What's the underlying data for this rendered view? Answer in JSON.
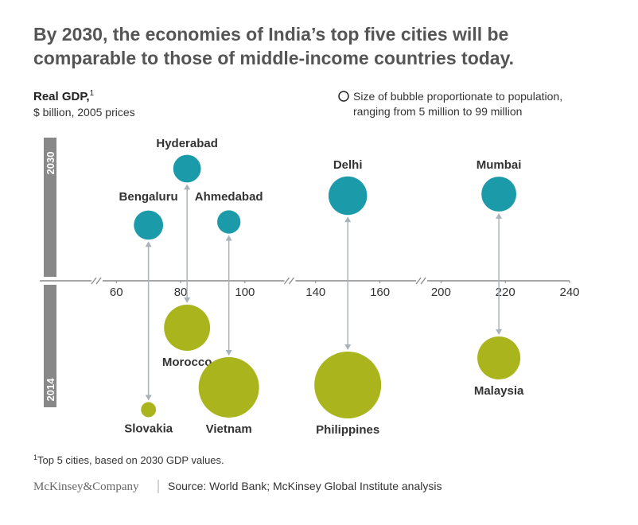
{
  "title": "By 2030, the economies of India’s top five cities will be comparable to those of middle-income countries today.",
  "chart_data": {
    "type": "bubble",
    "y_label": "Real GDP,",
    "y_label_note": "1",
    "y_unit": "$ billion, 2005 prices",
    "size_note": "Size of bubble proportionate to population, ranging from 5 million to 99 million",
    "x_segments": [
      [
        54,
        114
      ],
      [
        132,
        173
      ],
      [
        194,
        240
      ]
    ],
    "xticks": [
      60,
      80,
      100,
      140,
      160,
      200,
      220,
      240
    ],
    "top_label": "2030",
    "bottom_label": "2014",
    "series": [
      {
        "color": "#1b9aaa",
        "labels": [
          "Bengaluru",
          "Hyderabad",
          "Ahmedabad",
          "Delhi",
          "Mumbai"
        ],
        "values": [
          70,
          82,
          95,
          150,
          218
        ],
        "sizes": [
          19,
          17,
          12,
          33,
          27
        ]
      },
      {
        "color": "#aab51e",
        "labels": [
          "Slovakia",
          "Morocco",
          "Vietnam",
          "Philippines",
          "Malaysia"
        ],
        "values": [
          70,
          82,
          95,
          150,
          218
        ],
        "sizes": [
          5,
          47,
          81,
          99,
          41
        ]
      }
    ]
  },
  "footnote_mark": "1",
  "footnote": "Top 5 cities, based on 2030 GDP values.",
  "brand": "McKinsey&Company",
  "source": "Source: World Bank; McKinsey Global Institute analysis"
}
